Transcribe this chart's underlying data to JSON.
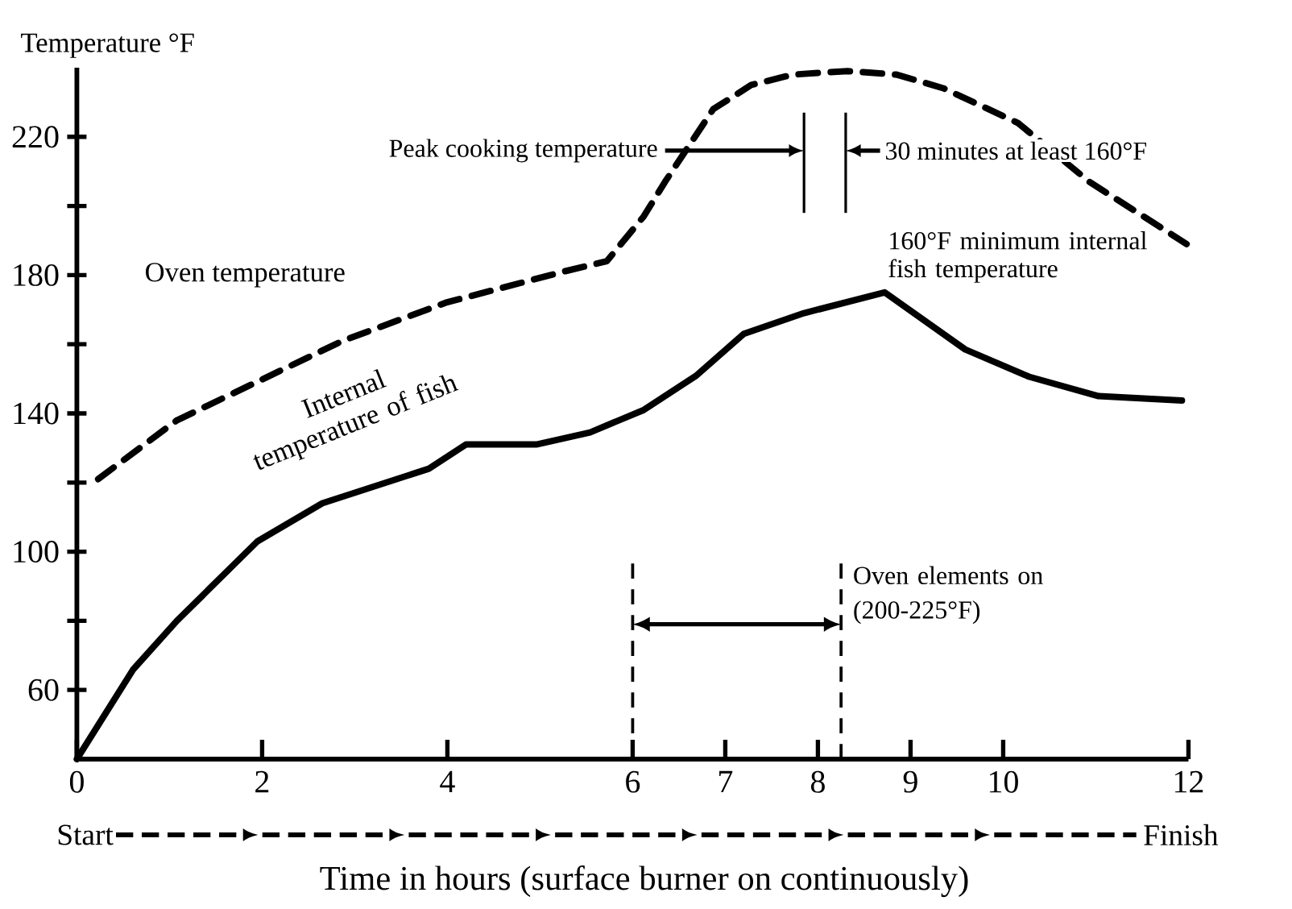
{
  "chart_data": {
    "type": "line",
    "xlabel": "Time in hours (surface burner on continuously)",
    "ylabel": "Temperature °F",
    "xlim": [
      0,
      12
    ],
    "ylim": [
      40,
      240
    ],
    "xticks": [
      0,
      2,
      4,
      6,
      7,
      8,
      9,
      10,
      12
    ],
    "yticks": [
      60,
      {
        "value": 80,
        "label": null
      },
      100,
      {
        "value": 120,
        "label": null
      },
      140,
      {
        "value": 160,
        "label": null
      },
      180,
      {
        "value": 200,
        "label": null
      },
      220
    ],
    "series": [
      {
        "name": "Oven temperature",
        "color": "#000000",
        "line_style": "dashed",
        "x": [
          0.23,
          1.08,
          2.87,
          3.98,
          5.25,
          5.72,
          6.12,
          6.35,
          6.87,
          7.28,
          7.73,
          8.32,
          8.85,
          9.36,
          10.16,
          10.93,
          11.98
        ],
        "values": [
          121,
          138,
          161,
          172,
          181,
          184,
          197,
          207,
          228,
          235,
          238,
          239,
          238,
          234,
          224,
          207,
          189
        ]
      },
      {
        "name": "Internal temperature of fish",
        "color": "#000000",
        "line_style": "solid",
        "x": [
          0,
          0.61,
          1.08,
          1.95,
          2.65,
          3.8,
          4.2,
          4.96,
          5.54,
          6.12,
          6.69,
          7.2,
          7.85,
          8.72,
          9.59,
          10.28,
          11.03,
          11.93
        ],
        "values": [
          40,
          66,
          80,
          103,
          114,
          124,
          131,
          131,
          134.5,
          141,
          151,
          163,
          169,
          175,
          158.5,
          150.6,
          145,
          143.7
        ]
      }
    ],
    "ref_lines": [
      {
        "axis": "x",
        "value": 7.85,
        "label": "Peak cooking temperature",
        "line_style": "solid"
      },
      {
        "axis": "x",
        "value": 8.3,
        "label": "30 minutes at least 160°F",
        "line_style": "solid"
      },
      {
        "axis": "x",
        "value": 6,
        "line_style": "dashed"
      },
      {
        "axis": "x",
        "value": 8.25,
        "label": "Oven elements on (200-225°F)",
        "line_style": "dashed"
      }
    ],
    "annotations": [
      {
        "text": "160°F minimum internal fish temperature",
        "x": 8.72,
        "y": 175
      },
      "Start",
      "Finish"
    ],
    "grid": false,
    "marker": "none"
  }
}
